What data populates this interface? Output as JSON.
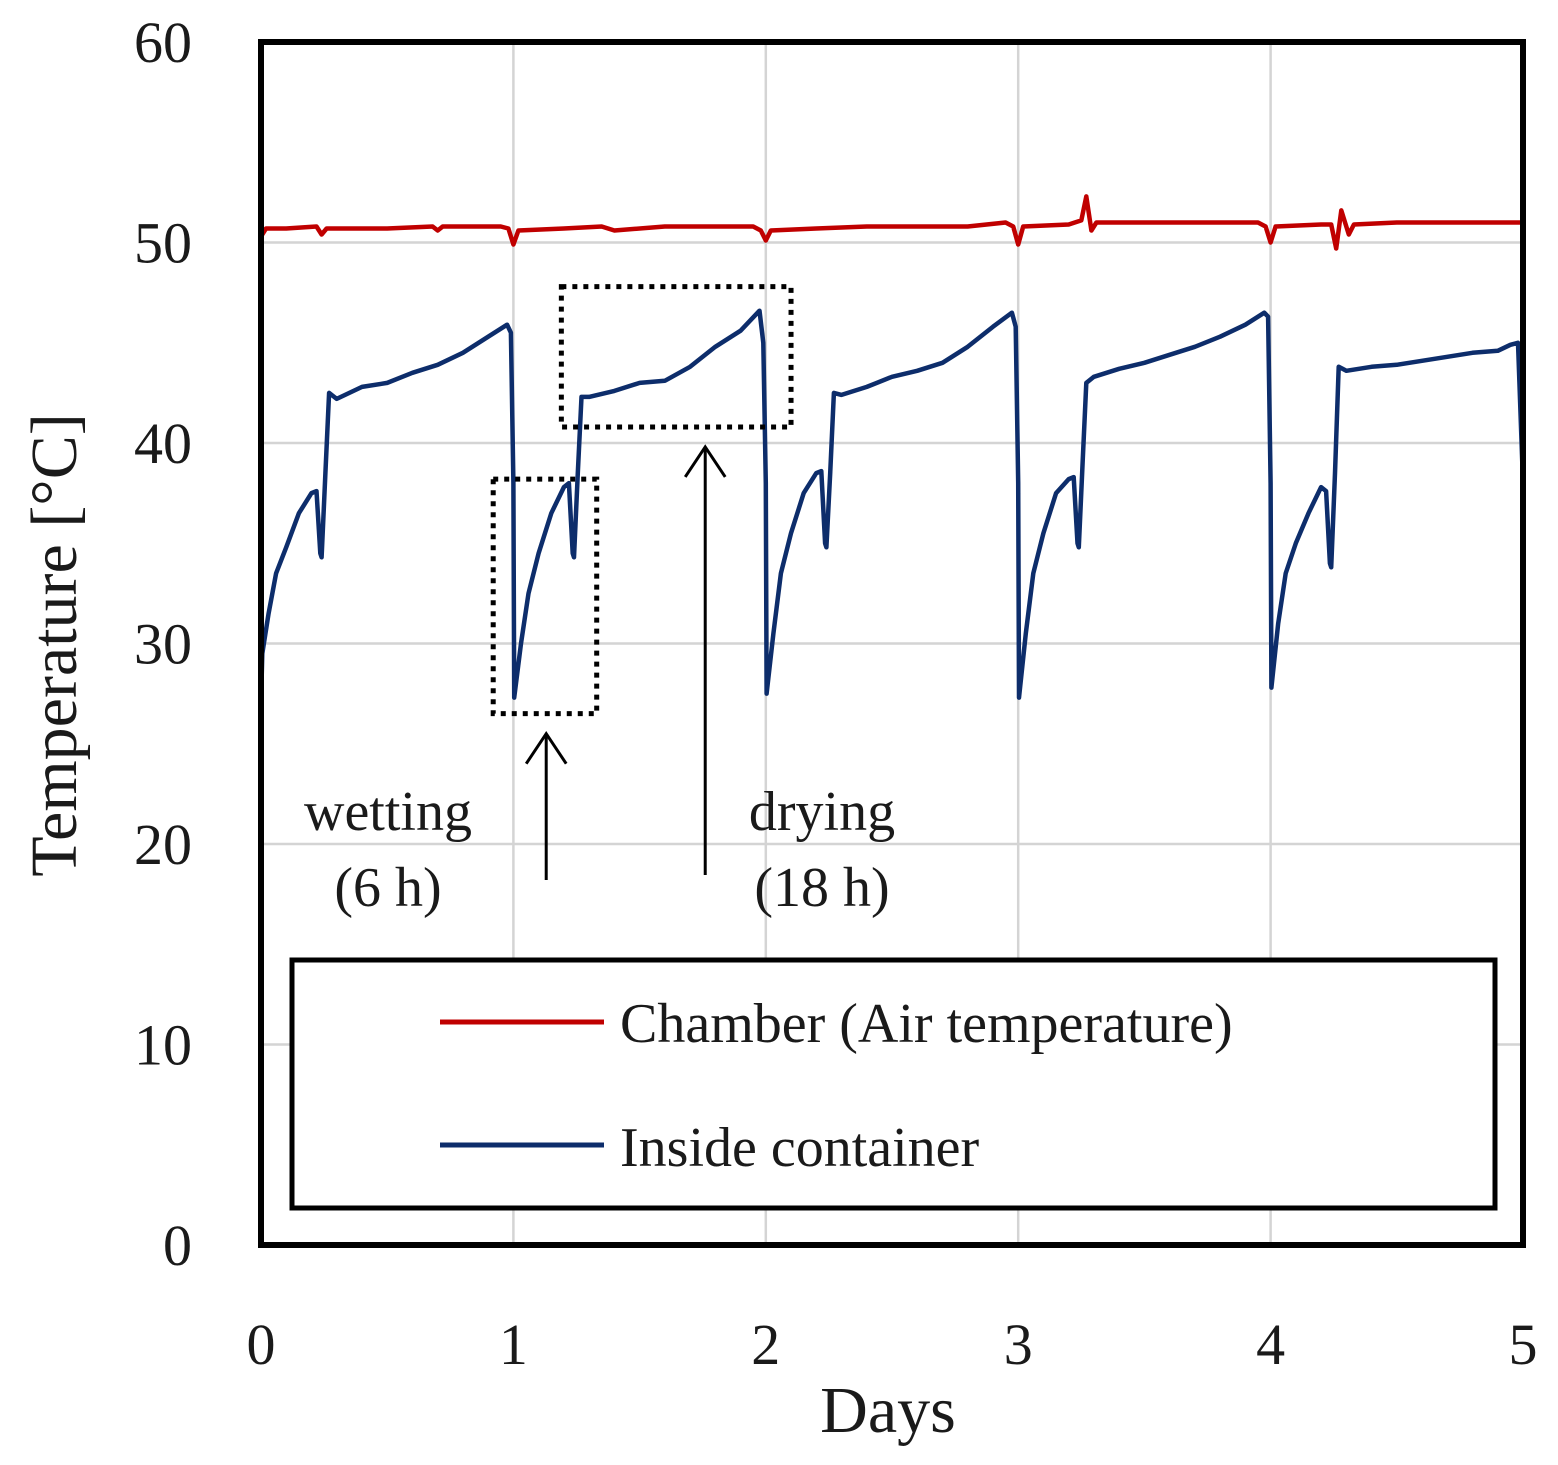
{
  "chart_data": {
    "type": "line",
    "title": "",
    "xlabel": "Days",
    "ylabel": "Temperature [°C]",
    "xlim": [
      0,
      5
    ],
    "ylim": [
      0,
      60
    ],
    "x_ticks": [
      0,
      1,
      2,
      3,
      4,
      5
    ],
    "y_ticks": [
      0,
      10,
      20,
      30,
      40,
      50,
      60
    ],
    "grid": true,
    "legend_position": "bottom",
    "series": [
      {
        "name": "Chamber (Air temperature)",
        "color": "#c00000",
        "x": [
          0,
          0.02,
          0.1,
          0.22,
          0.24,
          0.26,
          0.3,
          0.5,
          0.68,
          0.7,
          0.72,
          0.95,
          0.98,
          1.0,
          1.02,
          1.2,
          1.35,
          1.4,
          1.6,
          1.8,
          1.95,
          1.98,
          2.0,
          2.02,
          2.2,
          2.4,
          2.6,
          2.8,
          2.95,
          2.98,
          3.0,
          3.02,
          3.2,
          3.25,
          3.27,
          3.29,
          3.31,
          3.4,
          3.6,
          3.8,
          3.95,
          3.98,
          4.0,
          4.02,
          4.2,
          4.24,
          4.26,
          4.28,
          4.31,
          4.33,
          4.5,
          4.7,
          4.9,
          5.0
        ],
        "values": [
          50.3,
          50.7,
          50.7,
          50.8,
          50.4,
          50.7,
          50.7,
          50.7,
          50.8,
          50.6,
          50.8,
          50.8,
          50.7,
          49.9,
          50.6,
          50.7,
          50.8,
          50.6,
          50.8,
          50.8,
          50.8,
          50.6,
          50.1,
          50.6,
          50.7,
          50.8,
          50.8,
          50.8,
          51.0,
          50.8,
          49.9,
          50.8,
          50.9,
          51.1,
          52.3,
          50.6,
          51.0,
          51.0,
          51.0,
          51.0,
          51.0,
          50.8,
          50.0,
          50.8,
          50.9,
          50.9,
          49.7,
          51.6,
          50.4,
          50.9,
          51.0,
          51.0,
          51.0,
          51.0
        ]
      },
      {
        "name": "Inside container",
        "color": "#0d2d6b",
        "x": [
          0,
          0.005,
          0.03,
          0.06,
          0.1,
          0.15,
          0.2,
          0.22,
          0.235,
          0.24,
          0.255,
          0.27,
          0.3,
          0.4,
          0.5,
          0.6,
          0.7,
          0.8,
          0.9,
          0.975,
          0.99,
          1.0,
          1.003,
          1.03,
          1.06,
          1.1,
          1.15,
          1.2,
          1.22,
          1.235,
          1.24,
          1.255,
          1.27,
          1.3,
          1.4,
          1.5,
          1.6,
          1.7,
          1.8,
          1.9,
          1.975,
          1.99,
          2.0,
          2.003,
          2.03,
          2.06,
          2.1,
          2.15,
          2.2,
          2.22,
          2.235,
          2.24,
          2.255,
          2.27,
          2.3,
          2.4,
          2.5,
          2.6,
          2.7,
          2.8,
          2.9,
          2.975,
          2.99,
          3.0,
          3.003,
          3.03,
          3.06,
          3.1,
          3.15,
          3.2,
          3.22,
          3.235,
          3.24,
          3.255,
          3.27,
          3.3,
          3.4,
          3.5,
          3.6,
          3.7,
          3.8,
          3.9,
          3.975,
          3.99,
          4.0,
          4.003,
          4.03,
          4.06,
          4.1,
          4.15,
          4.2,
          4.22,
          4.235,
          4.24,
          4.255,
          4.27,
          4.3,
          4.4,
          4.5,
          4.6,
          4.7,
          4.8,
          4.9,
          4.95,
          4.98,
          5.0
        ],
        "values": [
          27.0,
          29.5,
          31.5,
          33.5,
          34.8,
          36.5,
          37.5,
          37.6,
          34.5,
          34.3,
          38.5,
          42.5,
          42.2,
          42.8,
          43.0,
          43.5,
          43.9,
          44.5,
          45.3,
          45.9,
          45.5,
          38.0,
          27.3,
          30.0,
          32.5,
          34.5,
          36.5,
          37.8,
          38.0,
          34.5,
          34.3,
          38.5,
          42.3,
          42.3,
          42.6,
          43.0,
          43.1,
          43.8,
          44.8,
          45.6,
          46.6,
          45.0,
          38.0,
          27.5,
          30.5,
          33.5,
          35.5,
          37.5,
          38.5,
          38.6,
          35.0,
          34.8,
          38.5,
          42.5,
          42.4,
          42.8,
          43.3,
          43.6,
          44.0,
          44.8,
          45.8,
          46.5,
          45.8,
          38.0,
          27.3,
          30.5,
          33.5,
          35.5,
          37.5,
          38.2,
          38.3,
          35.0,
          34.8,
          39.0,
          43.0,
          43.3,
          43.7,
          44.0,
          44.4,
          44.8,
          45.3,
          45.9,
          46.5,
          46.3,
          38.0,
          27.8,
          31.0,
          33.5,
          35.0,
          36.5,
          37.8,
          37.6,
          34.0,
          33.8,
          38.5,
          43.8,
          43.6,
          43.8,
          43.9,
          44.1,
          44.3,
          44.5,
          44.6,
          44.9,
          45.0,
          38.0
        ]
      }
    ],
    "annotations": [
      {
        "text_lines": [
          "wetting",
          "(6 h)"
        ],
        "target_day": 1.13,
        "box_days": [
          0.92,
          1.33
        ],
        "box_temps": [
          26.5,
          38.2
        ]
      },
      {
        "text_lines": [
          "drying",
          "(18 h)"
        ],
        "target_day": 1.76,
        "box_days": [
          1.19,
          2.1
        ],
        "box_temps": [
          40.8,
          47.8
        ]
      }
    ]
  }
}
